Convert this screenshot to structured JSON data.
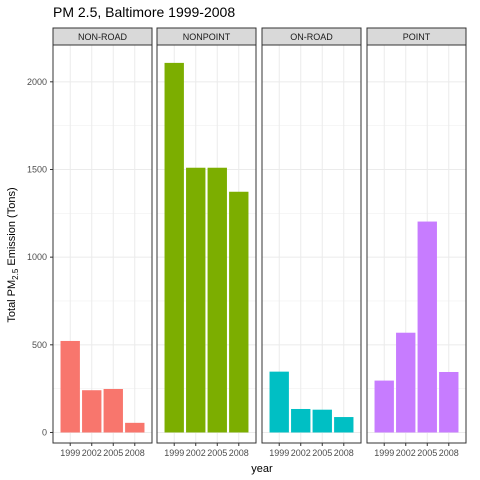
{
  "chart_data": {
    "type": "bar",
    "title": "PM 2.5, Baltimore 1999-2008",
    "xlabel": "year",
    "ylabel": {
      "prefix": "Total PM",
      "subscript": "2.5",
      "suffix": " Emission (Tons)"
    },
    "categories": [
      "1999",
      "2002",
      "2005",
      "2008"
    ],
    "yticks": [
      0,
      500,
      1000,
      1500,
      2000
    ],
    "ylim": [
      -60,
      2210
    ],
    "grid": true,
    "facets": [
      {
        "name": "NON-ROAD",
        "color": "#F8766D",
        "values": [
          522,
          241,
          248,
          55
        ]
      },
      {
        "name": "NONPOINT",
        "color": "#7CAE00",
        "values": [
          2108,
          1510,
          1510,
          1373
        ]
      },
      {
        "name": "ON-ROAD",
        "color": "#00BFC4",
        "values": [
          347,
          134,
          130,
          88
        ]
      },
      {
        "name": "POINT",
        "color": "#C77CFF",
        "values": [
          296,
          569,
          1203,
          345
        ]
      }
    ]
  }
}
